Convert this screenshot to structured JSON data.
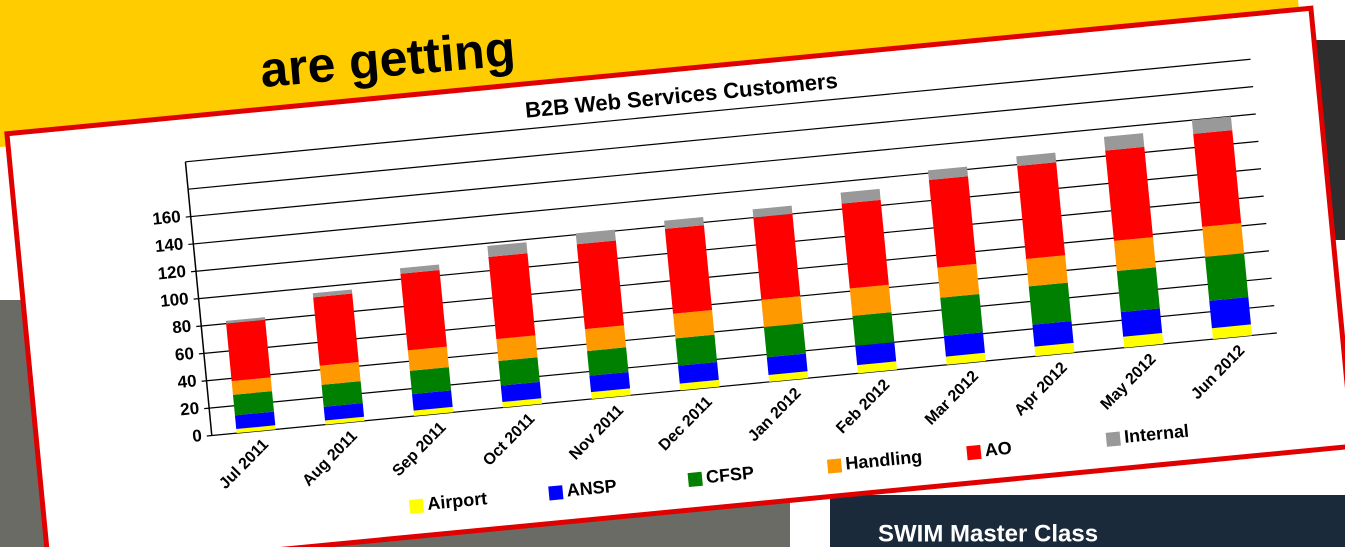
{
  "slide": {
    "heading": "are getting",
    "promo": "SWIM Master Class"
  },
  "chart_data": {
    "type": "bar",
    "stacked": true,
    "title": "B2B Web Services Customers",
    "categories": [
      "Jul 2011",
      "Aug 2011",
      "Sep 2011",
      "Oct 2011",
      "Nov 2011",
      "Dec 2011",
      "Jan 2012",
      "Feb 2012",
      "Mar 2012",
      "Apr 2012",
      "May 2012",
      "Jun 2012"
    ],
    "series": [
      {
        "name": "Airport",
        "color": "#ffff00",
        "values": [
          3,
          3,
          4,
          4,
          5,
          5,
          5,
          6,
          6,
          7,
          8,
          8
        ]
      },
      {
        "name": "ANSP",
        "color": "#0000ff",
        "values": [
          10,
          10,
          12,
          12,
          12,
          13,
          13,
          14,
          15,
          16,
          18,
          20
        ]
      },
      {
        "name": "CFSP",
        "color": "#008000",
        "values": [
          15,
          16,
          17,
          18,
          18,
          20,
          22,
          22,
          28,
          28,
          30,
          32
        ]
      },
      {
        "name": "Handling",
        "color": "#ff9900",
        "values": [
          10,
          14,
          15,
          16,
          16,
          18,
          20,
          20,
          22,
          20,
          22,
          22
        ]
      },
      {
        "name": "AO",
        "color": "#ff0000",
        "values": [
          42,
          50,
          56,
          60,
          62,
          62,
          60,
          62,
          64,
          68,
          66,
          68
        ]
      },
      {
        "name": "Internal",
        "color": "#999999",
        "values": [
          2,
          3,
          4,
          8,
          8,
          6,
          6,
          8,
          7,
          7,
          10,
          10
        ]
      }
    ],
    "ylim": [
      0,
      200
    ],
    "yticks": [
      0,
      20,
      40,
      60,
      80,
      100,
      120,
      140,
      160
    ],
    "grid": true,
    "legend": "bottom"
  }
}
